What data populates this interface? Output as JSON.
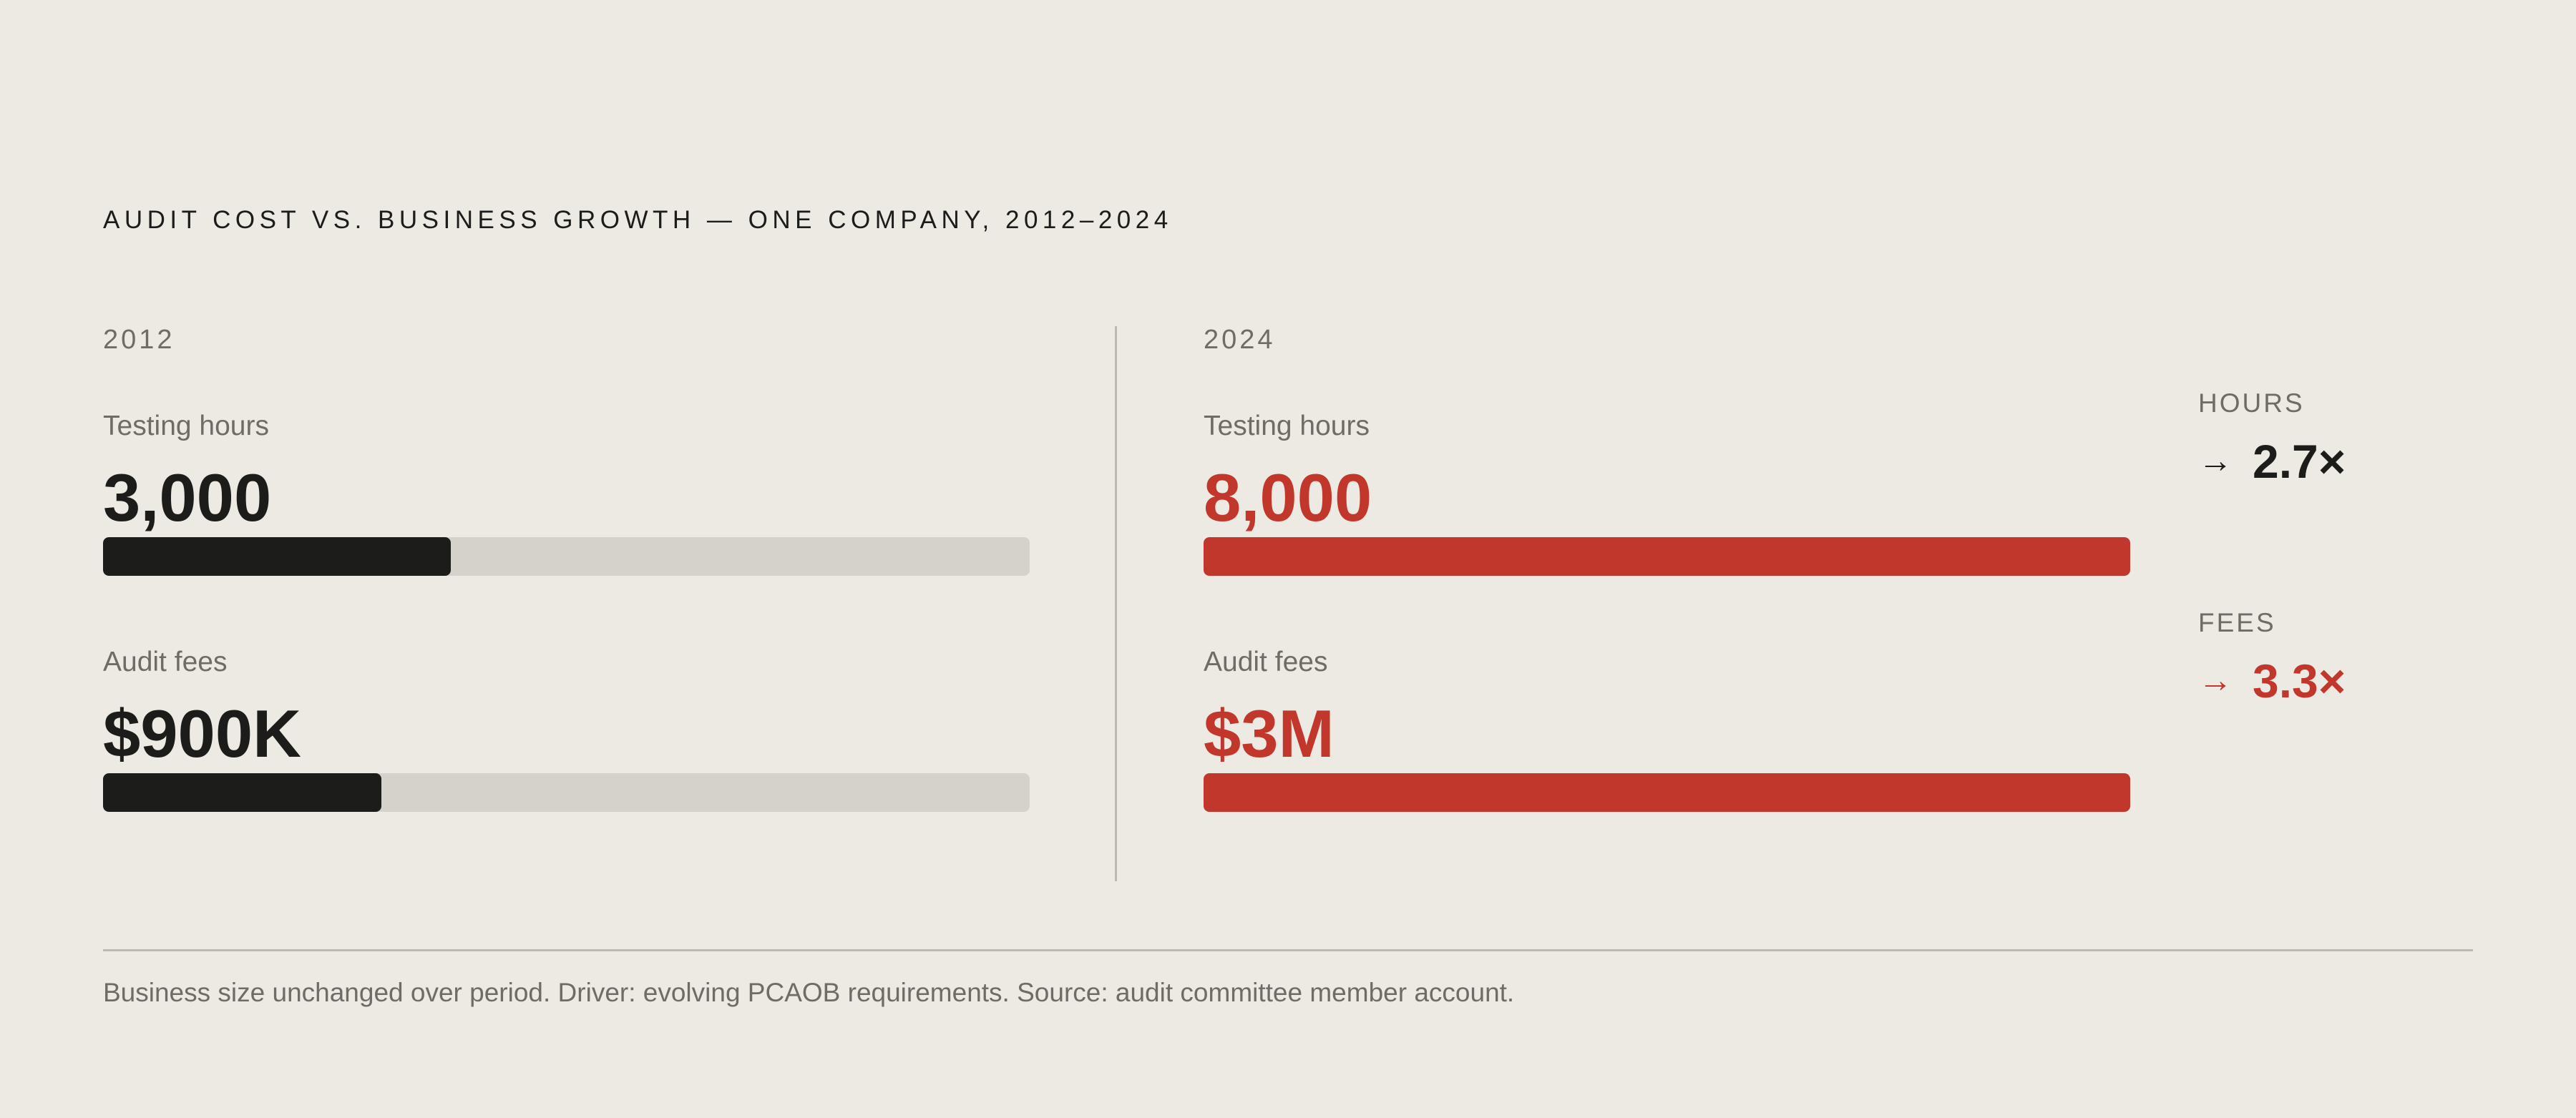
{
  "title": "AUDIT COST VS. BUSINESS GROWTH — ONE COMPANY, 2012–2024",
  "colors": {
    "background": "#EDEAE4",
    "dark": "#1C1C1A",
    "accent": "#C2372C",
    "track": "#D5D2CB",
    "muted": "#6F6C66"
  },
  "chart_data": {
    "type": "bar",
    "panels": [
      {
        "year": "2012",
        "color": "#1C1C1A",
        "metrics": [
          {
            "label": "Testing hours",
            "display": "3,000",
            "value": 3000,
            "fraction": 0.375
          },
          {
            "label": "Audit fees",
            "display": "$900K",
            "value": 900000,
            "fraction": 0.3
          }
        ]
      },
      {
        "year": "2024",
        "color": "#C2372C",
        "metrics": [
          {
            "label": "Testing hours",
            "display": "8,000",
            "value": 8000,
            "fraction": 1.0
          },
          {
            "label": "Audit fees",
            "display": "$3M",
            "value": 3000000,
            "fraction": 1.0
          }
        ]
      }
    ],
    "multipliers": [
      {
        "label": "HOURS",
        "arrow": "→",
        "value": "2.7×",
        "color": "#1C1C1A"
      },
      {
        "label": "FEES",
        "arrow": "→",
        "value": "3.3×",
        "color": "#C2372C"
      }
    ]
  },
  "footnote": "Business size unchanged over period. Driver: evolving PCAOB requirements. Source: audit committee member account."
}
